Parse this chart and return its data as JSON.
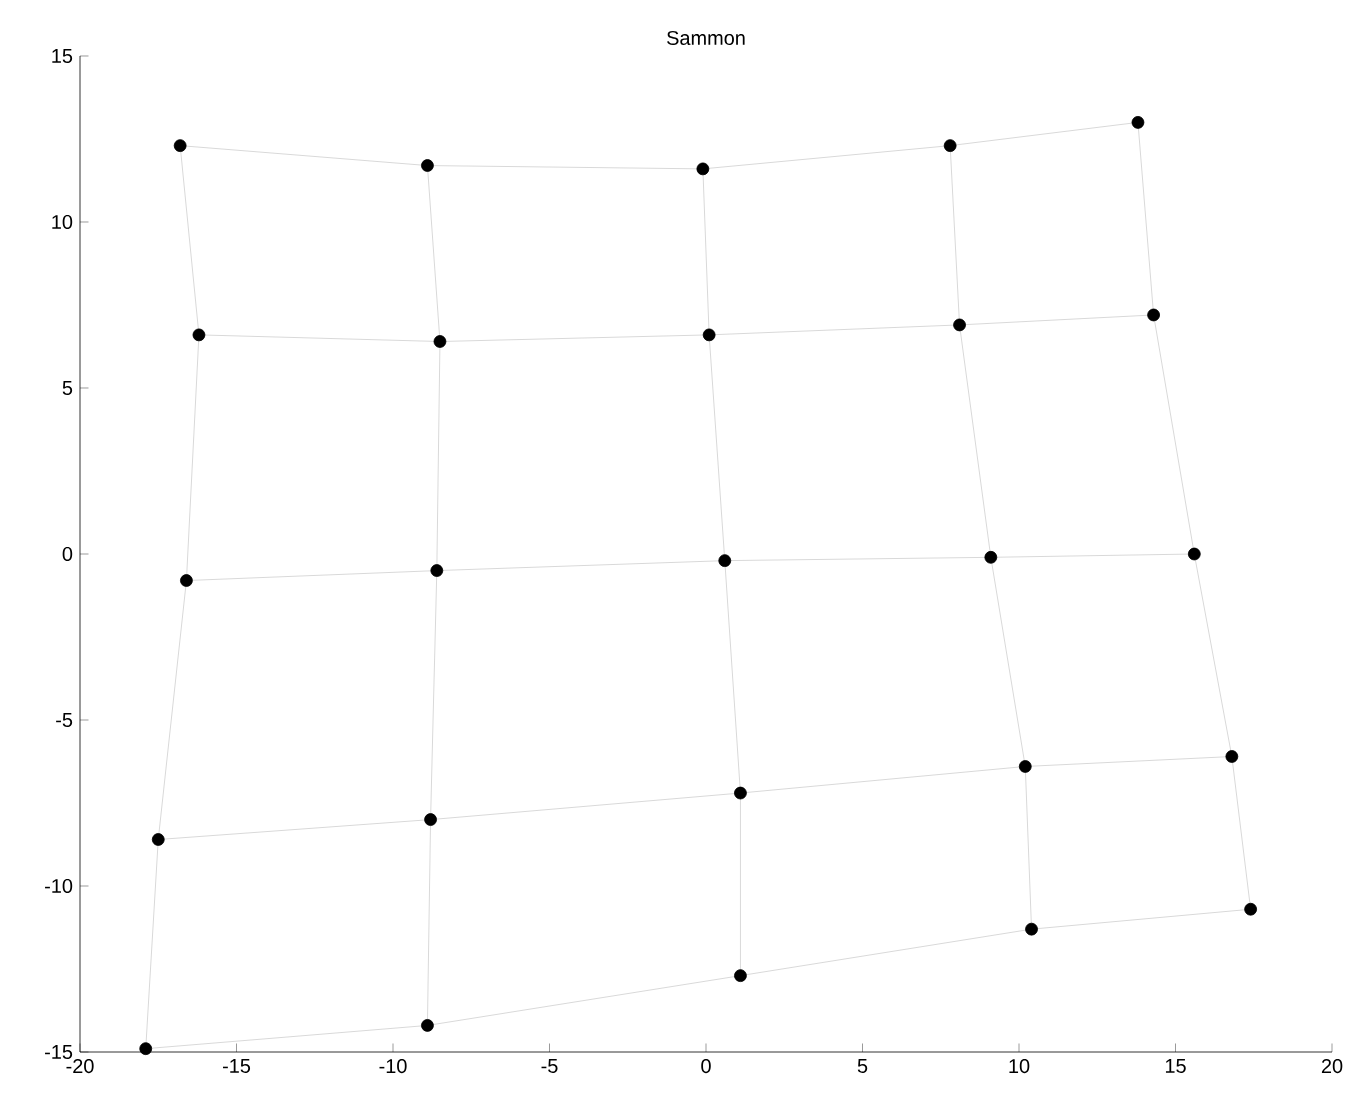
{
  "chart_data": {
    "type": "scatter",
    "title": "Sammon",
    "xlim": [
      -20,
      20
    ],
    "ylim": [
      -15,
      15
    ],
    "xticks": [
      -20,
      -15,
      -10,
      -5,
      0,
      5,
      10,
      15,
      20
    ],
    "yticks": [
      -15,
      -10,
      -5,
      0,
      5,
      10,
      15
    ],
    "grid": false,
    "legend": false,
    "series": [
      {
        "type": "line",
        "color": "#d9d9d9",
        "marker": "none",
        "x": [
          -16.8,
          -8.9,
          -0.1,
          7.8,
          13.8
        ],
        "values": [
          12.3,
          11.7,
          11.6,
          12.3,
          13.0
        ]
      },
      {
        "type": "line",
        "color": "#d9d9d9",
        "marker": "none",
        "x": [
          -16.2,
          -8.5,
          0.1,
          8.1,
          14.3
        ],
        "values": [
          6.6,
          6.4,
          6.6,
          6.9,
          7.2
        ]
      },
      {
        "type": "line",
        "color": "#d9d9d9",
        "marker": "none",
        "x": [
          -16.6,
          -8.6,
          0.6,
          9.1,
          15.6
        ],
        "values": [
          -0.8,
          -0.5,
          -0.2,
          -0.1,
          0.0
        ]
      },
      {
        "type": "line",
        "color": "#d9d9d9",
        "marker": "none",
        "x": [
          -17.5,
          -8.8,
          1.1,
          10.2,
          16.8
        ],
        "values": [
          -8.6,
          -8.0,
          -7.2,
          -6.4,
          -6.1
        ]
      },
      {
        "type": "line",
        "color": "#d9d9d9",
        "marker": "none",
        "x": [
          -17.9,
          -8.9,
          1.1,
          10.4,
          17.4
        ],
        "values": [
          -14.9,
          -14.2,
          -12.7,
          -11.3,
          -10.7
        ]
      },
      {
        "type": "line",
        "color": "#d9d9d9",
        "marker": "none",
        "x": [
          -16.8,
          -16.2,
          -16.6,
          -17.5,
          -17.9
        ],
        "values": [
          12.3,
          6.6,
          -0.8,
          -8.6,
          -14.9
        ]
      },
      {
        "type": "line",
        "color": "#d9d9d9",
        "marker": "none",
        "x": [
          -8.9,
          -8.5,
          -8.6,
          -8.8,
          -8.9
        ],
        "values": [
          11.7,
          6.4,
          -0.5,
          -8.0,
          -14.2
        ]
      },
      {
        "type": "line",
        "color": "#d9d9d9",
        "marker": "none",
        "x": [
          -0.1,
          0.1,
          0.6,
          1.1,
          1.1
        ],
        "values": [
          11.6,
          6.6,
          -0.2,
          -7.2,
          -12.7
        ]
      },
      {
        "type": "line",
        "color": "#d9d9d9",
        "marker": "none",
        "x": [
          7.8,
          8.1,
          9.1,
          10.2,
          10.4
        ],
        "values": [
          12.3,
          6.9,
          -0.1,
          -6.4,
          -11.3
        ]
      },
      {
        "type": "line",
        "color": "#d9d9d9",
        "marker": "none",
        "x": [
          13.8,
          14.3,
          15.6,
          16.8,
          17.4
        ],
        "values": [
          13.0,
          7.2,
          0.0,
          -6.1,
          -10.7
        ]
      },
      {
        "color": "#000000",
        "marker": "circle",
        "x": [
          -16.8,
          -8.9,
          -0.1,
          7.8,
          13.8,
          -16.2,
          -8.5,
          0.1,
          8.1,
          14.3,
          -16.6,
          -8.6,
          0.6,
          9.1,
          15.6,
          -17.5,
          -8.8,
          1.1,
          10.2,
          16.8,
          -17.9,
          -8.9,
          1.1,
          10.4,
          17.4
        ],
        "values": [
          12.3,
          11.7,
          11.6,
          12.3,
          13.0,
          6.6,
          6.4,
          6.6,
          6.9,
          7.2,
          -0.8,
          -0.5,
          -0.2,
          -0.1,
          0.0,
          -8.6,
          -8.0,
          -7.2,
          -6.4,
          -6.1,
          -14.9,
          -14.2,
          -12.7,
          -11.3,
          -10.7
        ]
      }
    ]
  }
}
